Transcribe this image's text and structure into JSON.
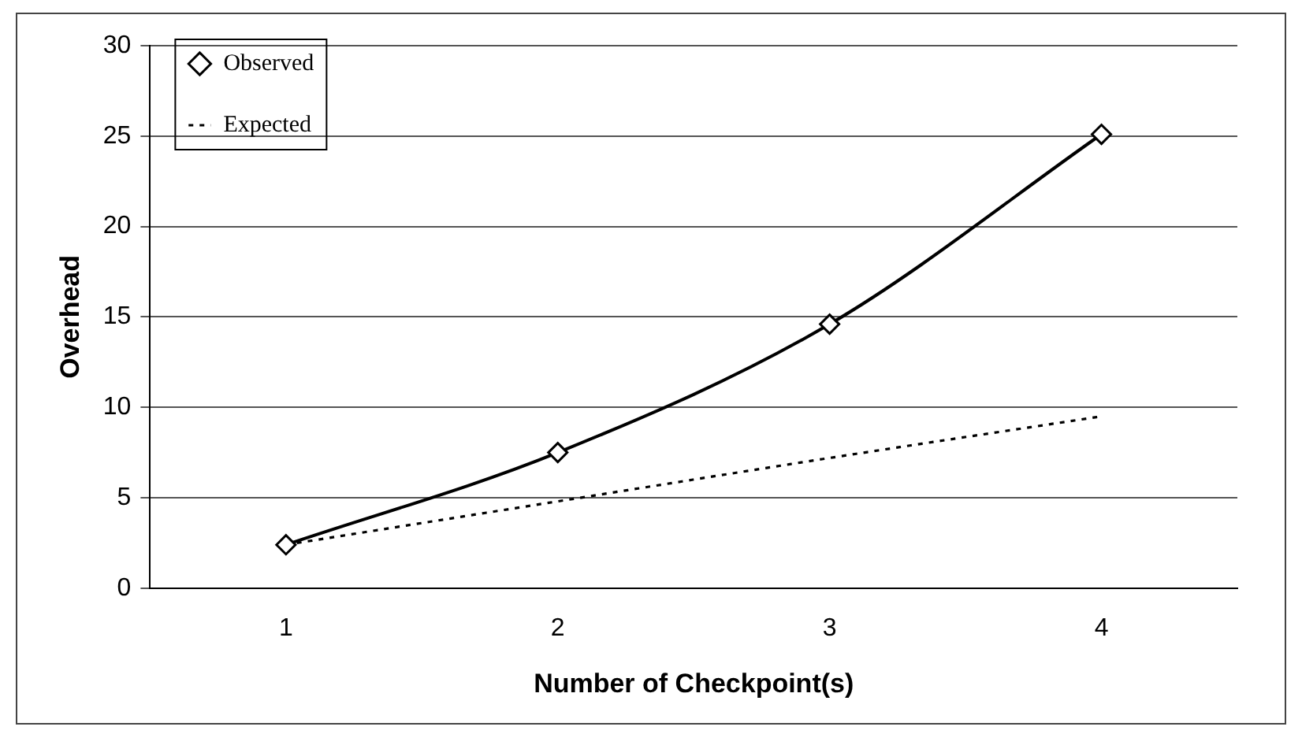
{
  "chart_data": {
    "type": "line",
    "xlabel": "Number of Checkpoint(s)",
    "ylabel": "Overhead",
    "categories": [
      "1",
      "2",
      "3",
      "4"
    ],
    "series": [
      {
        "name": "Observed",
        "color": "#000000",
        "values": [
          2.4,
          7.5,
          14.6,
          25.1
        ],
        "marker": "diamond",
        "line_style": "solid"
      },
      {
        "name": "Expected",
        "color": "#000000",
        "values": [
          2.4,
          4.8,
          7.2,
          9.5
        ],
        "marker": "none",
        "line_style": "dotted"
      }
    ],
    "ylim": [
      0,
      30
    ],
    "yticks": [
      0,
      5,
      10,
      15,
      20,
      25,
      30
    ],
    "grid": "y",
    "legend": "top left"
  }
}
